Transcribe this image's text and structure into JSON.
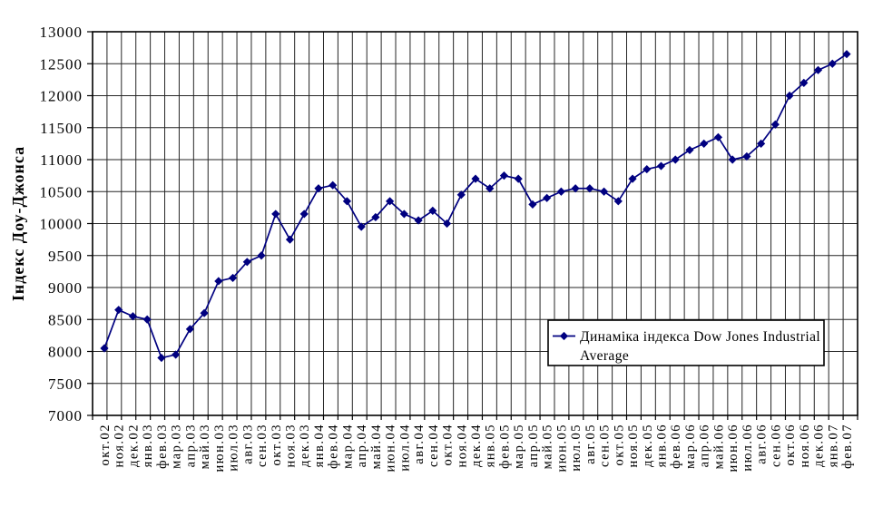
{
  "chart_data": {
    "type": "line",
    "title": "",
    "xlabel": "",
    "ylabel": "Індекс Доу-Джонса",
    "ylim": [
      7000,
      13000
    ],
    "ytick_step": 500,
    "grid": "both",
    "legend_position": "right-center-inside",
    "categories": [
      "окт.02",
      "ноя.02",
      "дек.02",
      "янв.03",
      "фев.03",
      "мар.03",
      "апр.03",
      "май.03",
      "июн.03",
      "июл.03",
      "авг.03",
      "сен.03",
      "окт.03",
      "ноя.03",
      "дек.03",
      "янв.04",
      "фев.04",
      "мар.04",
      "апр.04",
      "май.04",
      "июн.04",
      "июл.04",
      "авг.04",
      "сен.04",
      "окт.04",
      "ноя.04",
      "дек.04",
      "янв.05",
      "фев.05",
      "мар.05",
      "апр.05",
      "май.05",
      "июн.05",
      "июл.05",
      "авг.05",
      "сен.05",
      "окт.05",
      "ноя.05",
      "дек.05",
      "янв.06",
      "фев.06",
      "мар.06",
      "апр.06",
      "май.06",
      "июн.06",
      "июл.06",
      "авг.06",
      "сен.06",
      "окт.06",
      "ноя.06",
      "дек.06",
      "янв.07",
      "фев.07"
    ],
    "series": [
      {
        "name": "Динаміка індекса Dow Jones Industrial Average",
        "legend_lines": [
          "Динаміка індекса Dow Jones Industrial",
          "Average"
        ],
        "color": "#000080",
        "marker": "diamond",
        "values": [
          8050,
          8650,
          8550,
          8500,
          7900,
          7950,
          8350,
          8600,
          9100,
          9150,
          9400,
          9500,
          10150,
          9750,
          10150,
          10550,
          10600,
          10350,
          9950,
          10100,
          10350,
          10150,
          10050,
          10200,
          10000,
          10450,
          10700,
          10550,
          10750,
          10700,
          10300,
          10400,
          10500,
          10550,
          10550,
          10500,
          10350,
          10700,
          10850,
          10900,
          11000,
          11150,
          11250,
          11350,
          11000,
          11050,
          11250,
          11550,
          12000,
          12200,
          12400,
          12500,
          12650
        ]
      }
    ],
    "colors": {
      "background": "#ffffff",
      "grid": "#262626",
      "plot_border": "#000000",
      "text": "#000000",
      "series": "#000080",
      "legend_background": "#ffffff",
      "legend_border": "#000000"
    }
  }
}
